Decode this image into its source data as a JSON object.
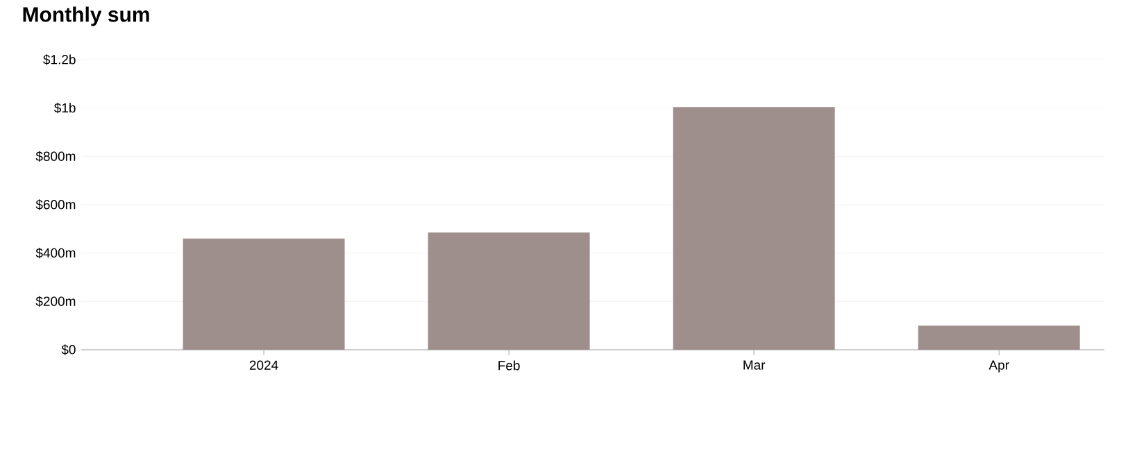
{
  "chart_data": {
    "type": "bar",
    "title": "Monthly sum",
    "categories": [
      "2024",
      "Feb",
      "Mar",
      "Apr"
    ],
    "values": [
      460000000,
      485000000,
      1004000000,
      100000000
    ],
    "color": "#9e8f8d",
    "ylim": [
      0,
      1200000000
    ],
    "yticks": [
      {
        "value": 0,
        "label": "$0"
      },
      {
        "value": 200000000,
        "label": "$200m"
      },
      {
        "value": 400000000,
        "label": "$400m"
      },
      {
        "value": 600000000,
        "label": "$600m"
      },
      {
        "value": 800000000,
        "label": "$800m"
      },
      {
        "value": 1000000000,
        "label": "$1b"
      },
      {
        "value": 1200000000,
        "label": "$1.2b"
      }
    ],
    "grid": "y"
  }
}
